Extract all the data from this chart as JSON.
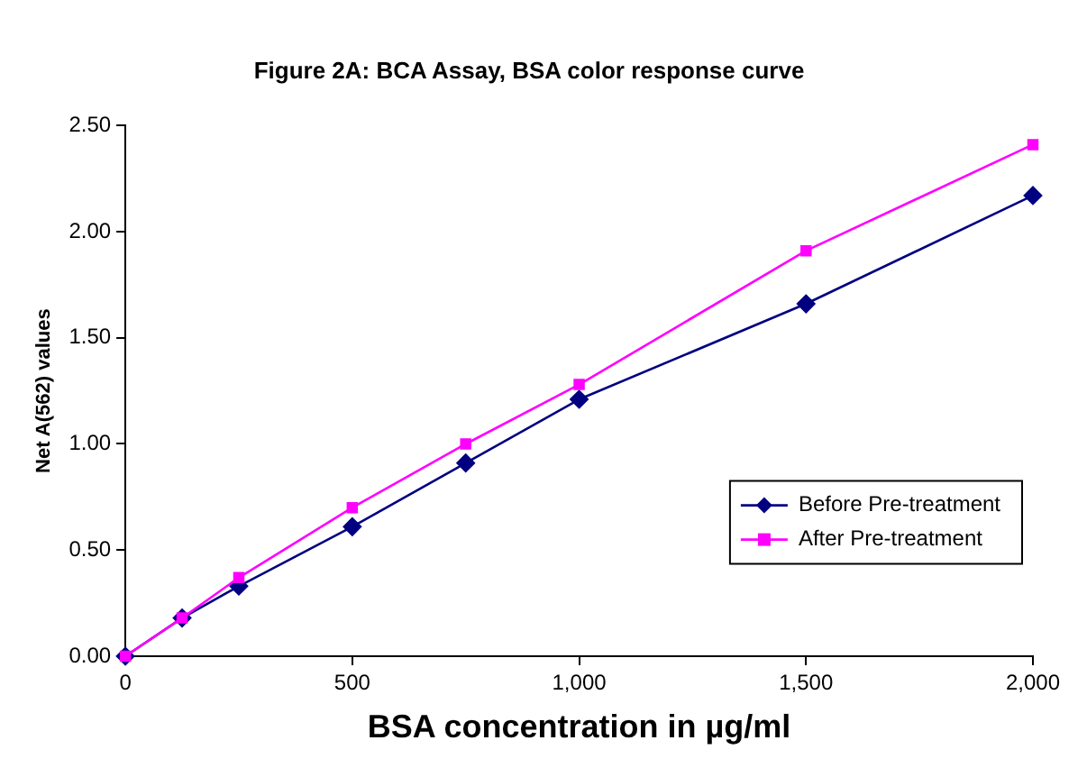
{
  "chart_data": {
    "type": "line",
    "title": "Figure 2A: BCA Assay, BSA color response curve",
    "xlabel": "BSA concentration in µg/ml",
    "ylabel": "Net A(562) values",
    "x": [
      0,
      125,
      250,
      500,
      750,
      1000,
      1500,
      2000
    ],
    "series": [
      {
        "name": "Before Pre-treatment",
        "color": "#000080",
        "marker": "diamond",
        "values": [
          0,
          0.18,
          0.33,
          0.61,
          0.91,
          1.21,
          1.66,
          2.17
        ]
      },
      {
        "name": "After Pre-treatment",
        "color": "#ff00ff",
        "marker": "square",
        "values": [
          0,
          0.18,
          0.37,
          0.7,
          1.0,
          1.28,
          1.91,
          2.41
        ]
      }
    ],
    "xlim": [
      0,
      2000
    ],
    "xticks": [
      0,
      500,
      {
        "value": 1000,
        "label": "1,000"
      },
      {
        "value": 1500,
        "label": "1,500"
      },
      {
        "value": 2000,
        "label": "2,000"
      }
    ],
    "ylim": [
      0,
      2.5
    ],
    "yticks": [
      {
        "value": 0,
        "label": "0.00"
      },
      {
        "value": 0.5,
        "label": "0.50"
      },
      {
        "value": 1,
        "label": "1.00"
      },
      {
        "value": 1.5,
        "label": "1.50"
      },
      {
        "value": 2,
        "label": "2.00"
      },
      {
        "value": 2.5,
        "label": "2.50"
      }
    ],
    "grid": false,
    "legend": "right"
  }
}
